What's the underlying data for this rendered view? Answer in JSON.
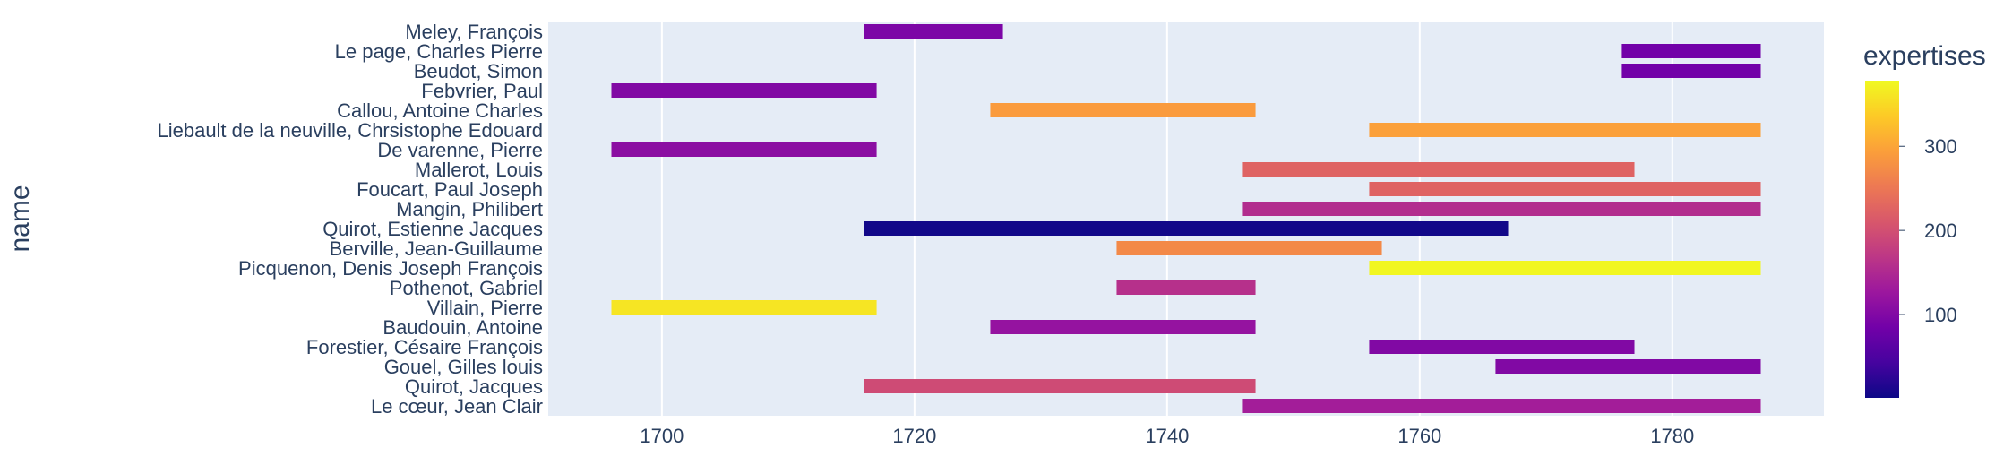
{
  "chart_data": {
    "type": "bar",
    "orientation": "horizontal-range",
    "title": "",
    "xlabel": "",
    "ylabel": "name",
    "xlim": [
      1691,
      1792
    ],
    "x_ticks": [
      1700,
      1720,
      1740,
      1760,
      1780
    ],
    "grid": true,
    "colorbar": {
      "title": "expertises",
      "range": [
        1,
        378
      ],
      "ticks": [
        100,
        200,
        300
      ],
      "colorscale": [
        "#0d0887",
        "#46039f",
        "#7201a8",
        "#9c179e",
        "#bd3786",
        "#d8576b",
        "#ed7953",
        "#fb9f3a",
        "#fdca26",
        "#f0f921"
      ]
    },
    "rows": [
      {
        "name": "Meley, François",
        "start": 1716,
        "end": 1727,
        "expertises": 95
      },
      {
        "name": "Le page, Charles Pierre",
        "start": 1776,
        "end": 1787,
        "expertises": 85
      },
      {
        "name": "Beudot, Simon",
        "start": 1776,
        "end": 1787,
        "expertises": 85
      },
      {
        "name": "Febvrier, Paul",
        "start": 1696,
        "end": 1717,
        "expertises": 100
      },
      {
        "name": "Callou, Antoine Charles",
        "start": 1726,
        "end": 1747,
        "expertises": 290
      },
      {
        "name": "Liebault de la neuville, Chrsistophe Edouard",
        "start": 1756,
        "end": 1787,
        "expertises": 295
      },
      {
        "name": "De varenne, Pierre",
        "start": 1696,
        "end": 1717,
        "expertises": 110
      },
      {
        "name": "Mallerot, Louis",
        "start": 1746,
        "end": 1777,
        "expertises": 225
      },
      {
        "name": "Foucart, Paul Joseph",
        "start": 1756,
        "end": 1787,
        "expertises": 225
      },
      {
        "name": "Mangin, Philibert",
        "start": 1746,
        "end": 1787,
        "expertises": 155
      },
      {
        "name": "Quirot, Estienne Jacques",
        "start": 1716,
        "end": 1767,
        "expertises": 5
      },
      {
        "name": "Berville, Jean-Guillaume",
        "start": 1736,
        "end": 1757,
        "expertises": 270
      },
      {
        "name": "Picquenon, Denis Joseph François",
        "start": 1756,
        "end": 1787,
        "expertises": 375
      },
      {
        "name": "Pothenot, Gabriel",
        "start": 1736,
        "end": 1747,
        "expertises": 160
      },
      {
        "name": "Villain, Pierre",
        "start": 1696,
        "end": 1717,
        "expertises": 360
      },
      {
        "name": "Baudouin, Antoine",
        "start": 1726,
        "end": 1747,
        "expertises": 120
      },
      {
        "name": "Forestier, Césaire François",
        "start": 1756,
        "end": 1777,
        "expertises": 100
      },
      {
        "name": "Gouel, Gilles louis",
        "start": 1766,
        "end": 1787,
        "expertises": 100
      },
      {
        "name": "Quirot, Jacques",
        "start": 1716,
        "end": 1747,
        "expertises": 195
      },
      {
        "name": "Le cœur, Jean Clair",
        "start": 1746,
        "end": 1787,
        "expertises": 135
      }
    ]
  }
}
